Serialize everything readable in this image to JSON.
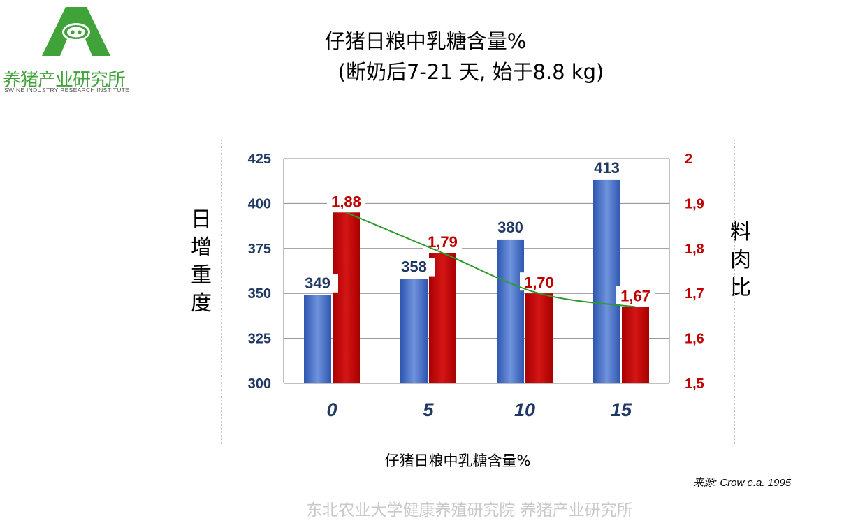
{
  "logo": {
    "name_cn": "养猪产业研究所",
    "name_en": "SWINE INDUSTRY RESEARCH INSTITUTE",
    "color": "#3fa33a"
  },
  "title": {
    "line1": "仔猪日粮中乳糖含量%",
    "line2": "(断奶后7-21 天, 始于8.8 kg)"
  },
  "left_axis_label": "日增重度",
  "right_axis_label": "料肉比",
  "x_axis_label": "仔猪日粮中乳糖含量%",
  "source": "来源: Crow e.a. 1995",
  "footer": "东北农业大学健康养殖研究院 养猪产业研究所",
  "chart_data": {
    "type": "bar",
    "categories": [
      "0",
      "5",
      "10",
      "15"
    ],
    "series": [
      {
        "axis": "left",
        "values": [
          349,
          358,
          380,
          413
        ],
        "labels": [
          "349",
          "358",
          "380",
          "413"
        ],
        "color": "#3a66c4"
      },
      {
        "axis": "right",
        "values": [
          1.88,
          1.79,
          1.7,
          1.67
        ],
        "labels": [
          "1,88",
          "1,79",
          "1,70",
          "1,67"
        ],
        "color": "#c00000"
      }
    ],
    "trendline": {
      "series_index": 1,
      "color": "#2b9a2b"
    },
    "y_left": {
      "min": 300,
      "max": 425,
      "ticks": [
        "300",
        "325",
        "350",
        "375",
        "400",
        "425"
      ],
      "color": "#1f3864"
    },
    "y_right": {
      "min": 1.5,
      "max": 2.0,
      "ticks": [
        "1,5",
        "1,6",
        "1,7",
        "1,8",
        "1,9",
        "2"
      ],
      "color": "#c00000"
    },
    "grid": true
  }
}
